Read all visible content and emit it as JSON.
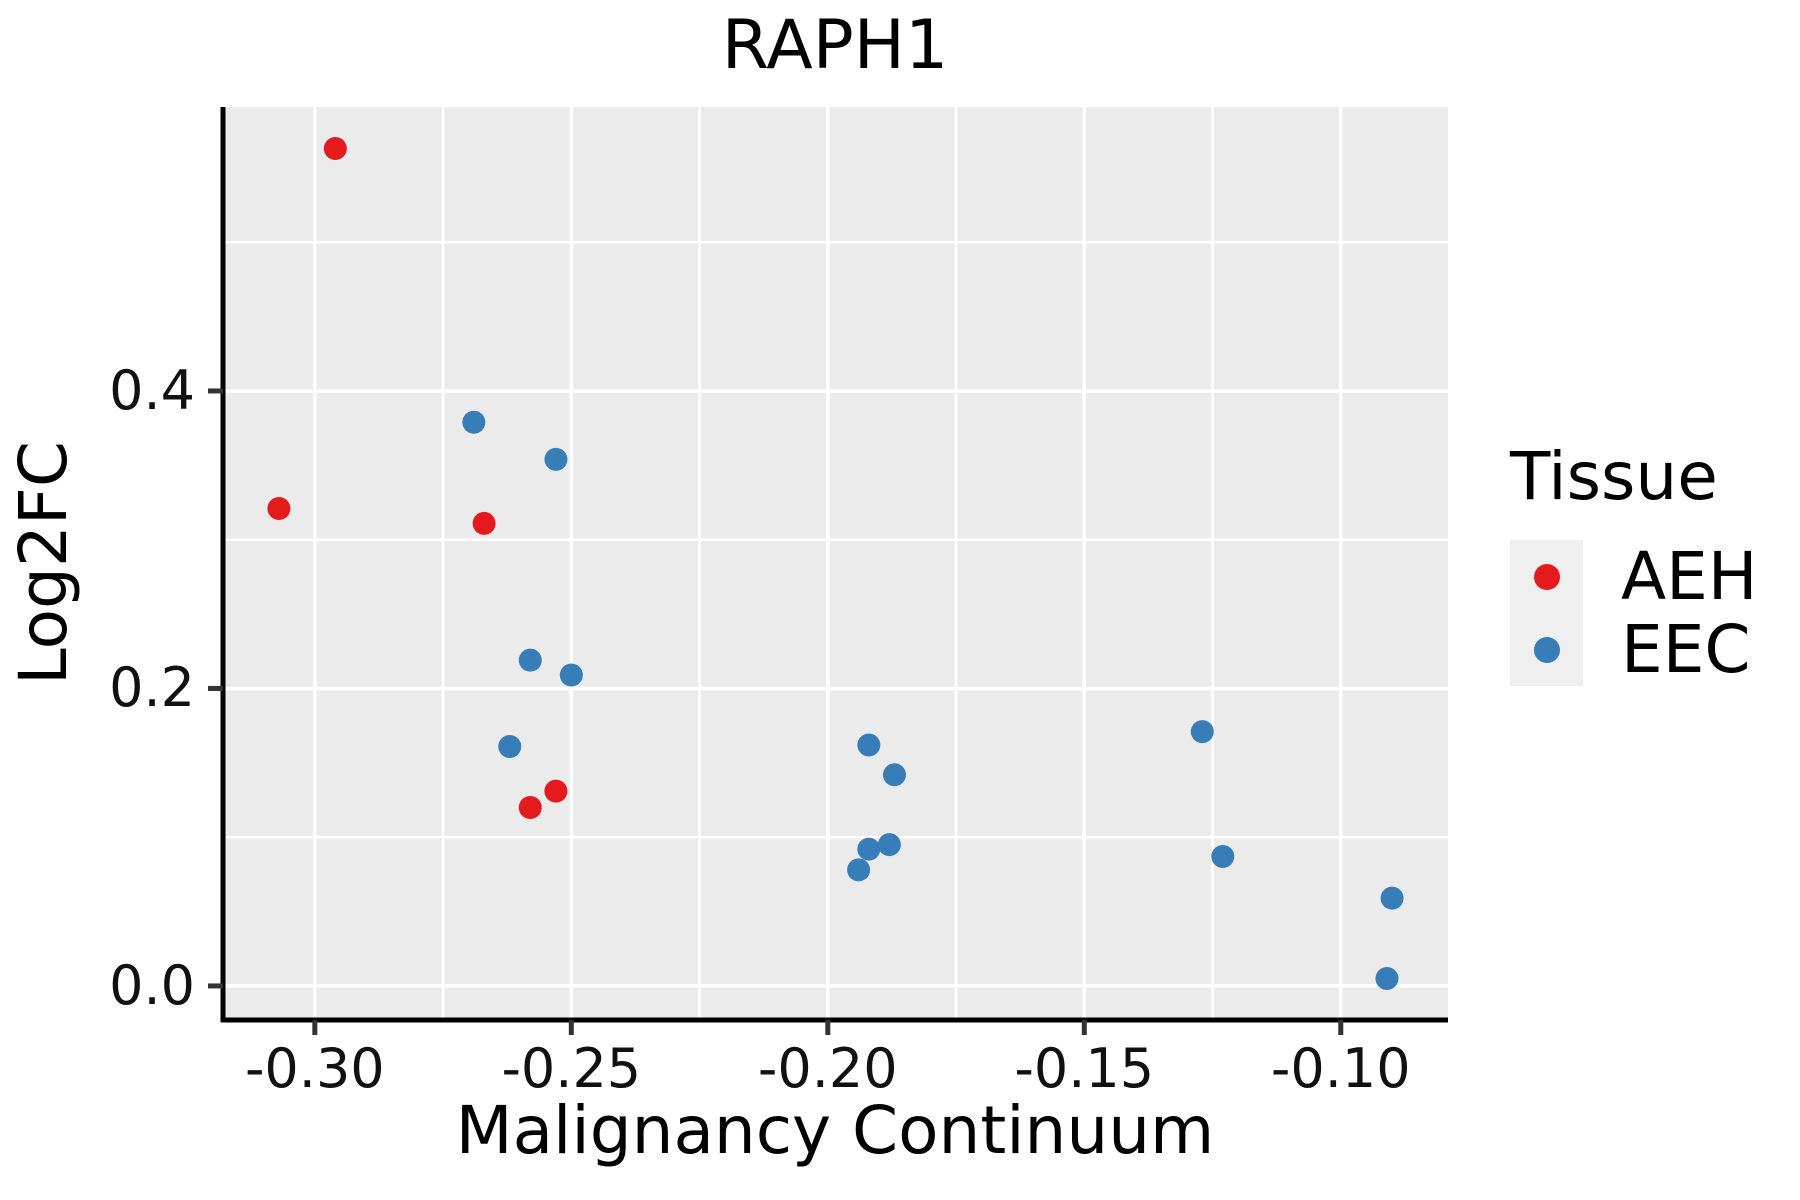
{
  "title": "RAPH1",
  "axes": {
    "x_label": "Malignancy Continuum",
    "y_label": "Log2FC",
    "x_tick_labels": [
      "-0.30",
      "-0.25",
      "-0.20",
      "-0.15",
      "-0.10"
    ],
    "y_tick_labels": [
      "0.0",
      "0.2",
      "0.4"
    ]
  },
  "legend": {
    "title": "Tissue",
    "entries": [
      {
        "label": "AEH",
        "color": "#e41a1c"
      },
      {
        "label": "EEC",
        "color": "#377eb8"
      }
    ]
  },
  "colors": {
    "panel_background": "#ebebeb",
    "gridline": "#ffffff",
    "spine": "#000000",
    "tick_mark": "#333333",
    "aeh": "#e41a1c",
    "eec": "#377eb8"
  },
  "chart_data": {
    "type": "scatter",
    "title": "RAPH1",
    "xlabel": "Malignancy Continuum",
    "ylabel": "Log2FC",
    "xlim": [
      -0.3179,
      -0.0791
    ],
    "ylim": [
      -0.0229,
      0.5909
    ],
    "x_ticks": [
      -0.3,
      -0.25,
      -0.2,
      -0.15,
      -0.1
    ],
    "y_ticks": [
      0.0,
      0.2,
      0.4
    ],
    "x_minor_ticks": [
      -0.275,
      -0.225,
      -0.175,
      -0.125
    ],
    "y_minor_ticks": [
      0.1,
      0.3,
      0.5
    ],
    "grid": true,
    "legend_position": "right",
    "point_radius_px": 11.5,
    "series": [
      {
        "name": "AEH",
        "color": "#e41a1c",
        "points": [
          [
            -0.296,
            0.563
          ],
          [
            -0.307,
            0.321
          ],
          [
            -0.267,
            0.311
          ],
          [
            -0.258,
            0.12
          ],
          [
            -0.253,
            0.131
          ]
        ]
      },
      {
        "name": "EEC",
        "color": "#377eb8",
        "points": [
          [
            -0.269,
            0.379
          ],
          [
            -0.253,
            0.354
          ],
          [
            -0.258,
            0.219
          ],
          [
            -0.25,
            0.209
          ],
          [
            -0.262,
            0.161
          ],
          [
            -0.192,
            0.162
          ],
          [
            -0.187,
            0.142
          ],
          [
            -0.194,
            0.078
          ],
          [
            -0.192,
            0.092
          ],
          [
            -0.188,
            0.095
          ],
          [
            -0.127,
            0.171
          ],
          [
            -0.123,
            0.087
          ],
          [
            -0.09,
            0.059
          ],
          [
            -0.091,
            0.005
          ]
        ]
      }
    ]
  }
}
